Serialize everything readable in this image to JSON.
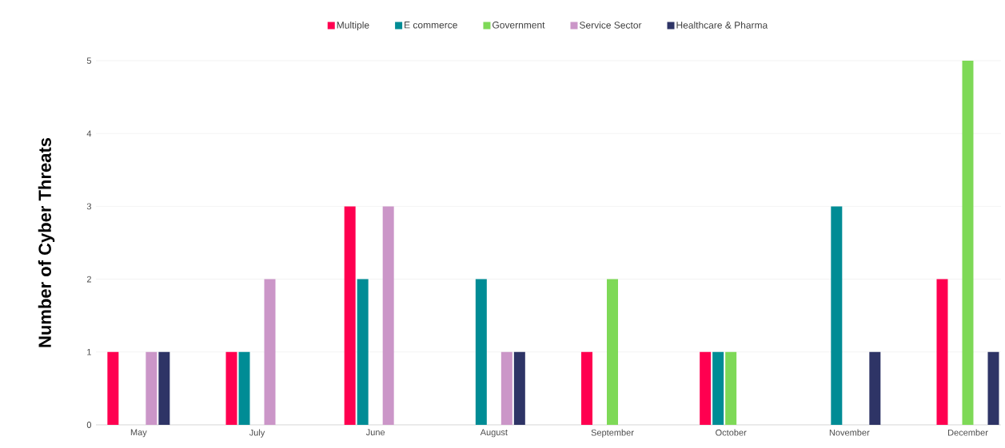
{
  "chart_data": {
    "type": "bar",
    "ylabel": "Number of Cyber Threats",
    "categories": [
      "May",
      "July",
      "June",
      "August",
      "September",
      "October",
      "November",
      "December"
    ],
    "series": [
      {
        "name": "Multiple",
        "color": "#ff0050",
        "values": [
          1,
          1,
          3,
          0,
          1,
          1,
          0,
          2
        ]
      },
      {
        "name": "E commerce",
        "color": "#008c95",
        "values": [
          0,
          1,
          2,
          2,
          0,
          1,
          3,
          0
        ]
      },
      {
        "name": "Government",
        "color": "#7ed957",
        "values": [
          0,
          0,
          0,
          0,
          2,
          1,
          0,
          5
        ]
      },
      {
        "name": "Service Sector",
        "color": "#cb96c8",
        "values": [
          1,
          2,
          3,
          1,
          0,
          0,
          0,
          0
        ]
      },
      {
        "name": "Healthcare & Pharma",
        "color": "#2e3466",
        "values": [
          1,
          0,
          0,
          1,
          0,
          0,
          1,
          1
        ]
      }
    ],
    "ylim": [
      0,
      5
    ],
    "yticks": [
      0,
      1,
      2,
      3,
      4,
      5
    ],
    "grid": "y",
    "legend": "top"
  }
}
